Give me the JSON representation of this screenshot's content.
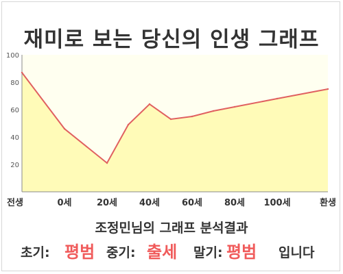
{
  "title": "재미로 보는 당신의 인생 그래프",
  "result_heading": "조정민님의 그래프 분석결과",
  "summary": {
    "early_label": "초기:",
    "early_value": "평범",
    "middle_label": "중기:",
    "middle_value": "출세",
    "late_label": "말기:",
    "late_value": "평범",
    "suffix": "입니다"
  },
  "colors": {
    "line": "#e06060",
    "fill": "#fffbb8",
    "highlight": "#f05a5a",
    "text": "#333333"
  },
  "chart_data": {
    "type": "area",
    "title": "재미로 보는 당신의 인생 그래프",
    "xlabel": "",
    "ylabel": "",
    "x_tick_labels": [
      "전생",
      "0세",
      "20세",
      "40세",
      "60세",
      "80세",
      "100세",
      "환생"
    ],
    "y_ticks": [
      20,
      40,
      60,
      80,
      100
    ],
    "ylim": [
      0,
      100
    ],
    "grid": false,
    "series": [
      {
        "points": [
          {
            "x": "전생",
            "y": 87
          },
          {
            "x": "0세",
            "y": 46
          },
          {
            "x": "20세",
            "y": 21
          },
          {
            "x": "30세",
            "y": 49
          },
          {
            "x": "40세",
            "y": 64
          },
          {
            "x": "50세",
            "y": 53
          },
          {
            "x": "60세",
            "y": 55
          },
          {
            "x": "70세",
            "y": 59
          },
          {
            "x": "80세",
            "y": 62
          },
          {
            "x": "100세",
            "y": 68
          },
          {
            "x": "환생",
            "y": 75
          }
        ]
      }
    ]
  }
}
